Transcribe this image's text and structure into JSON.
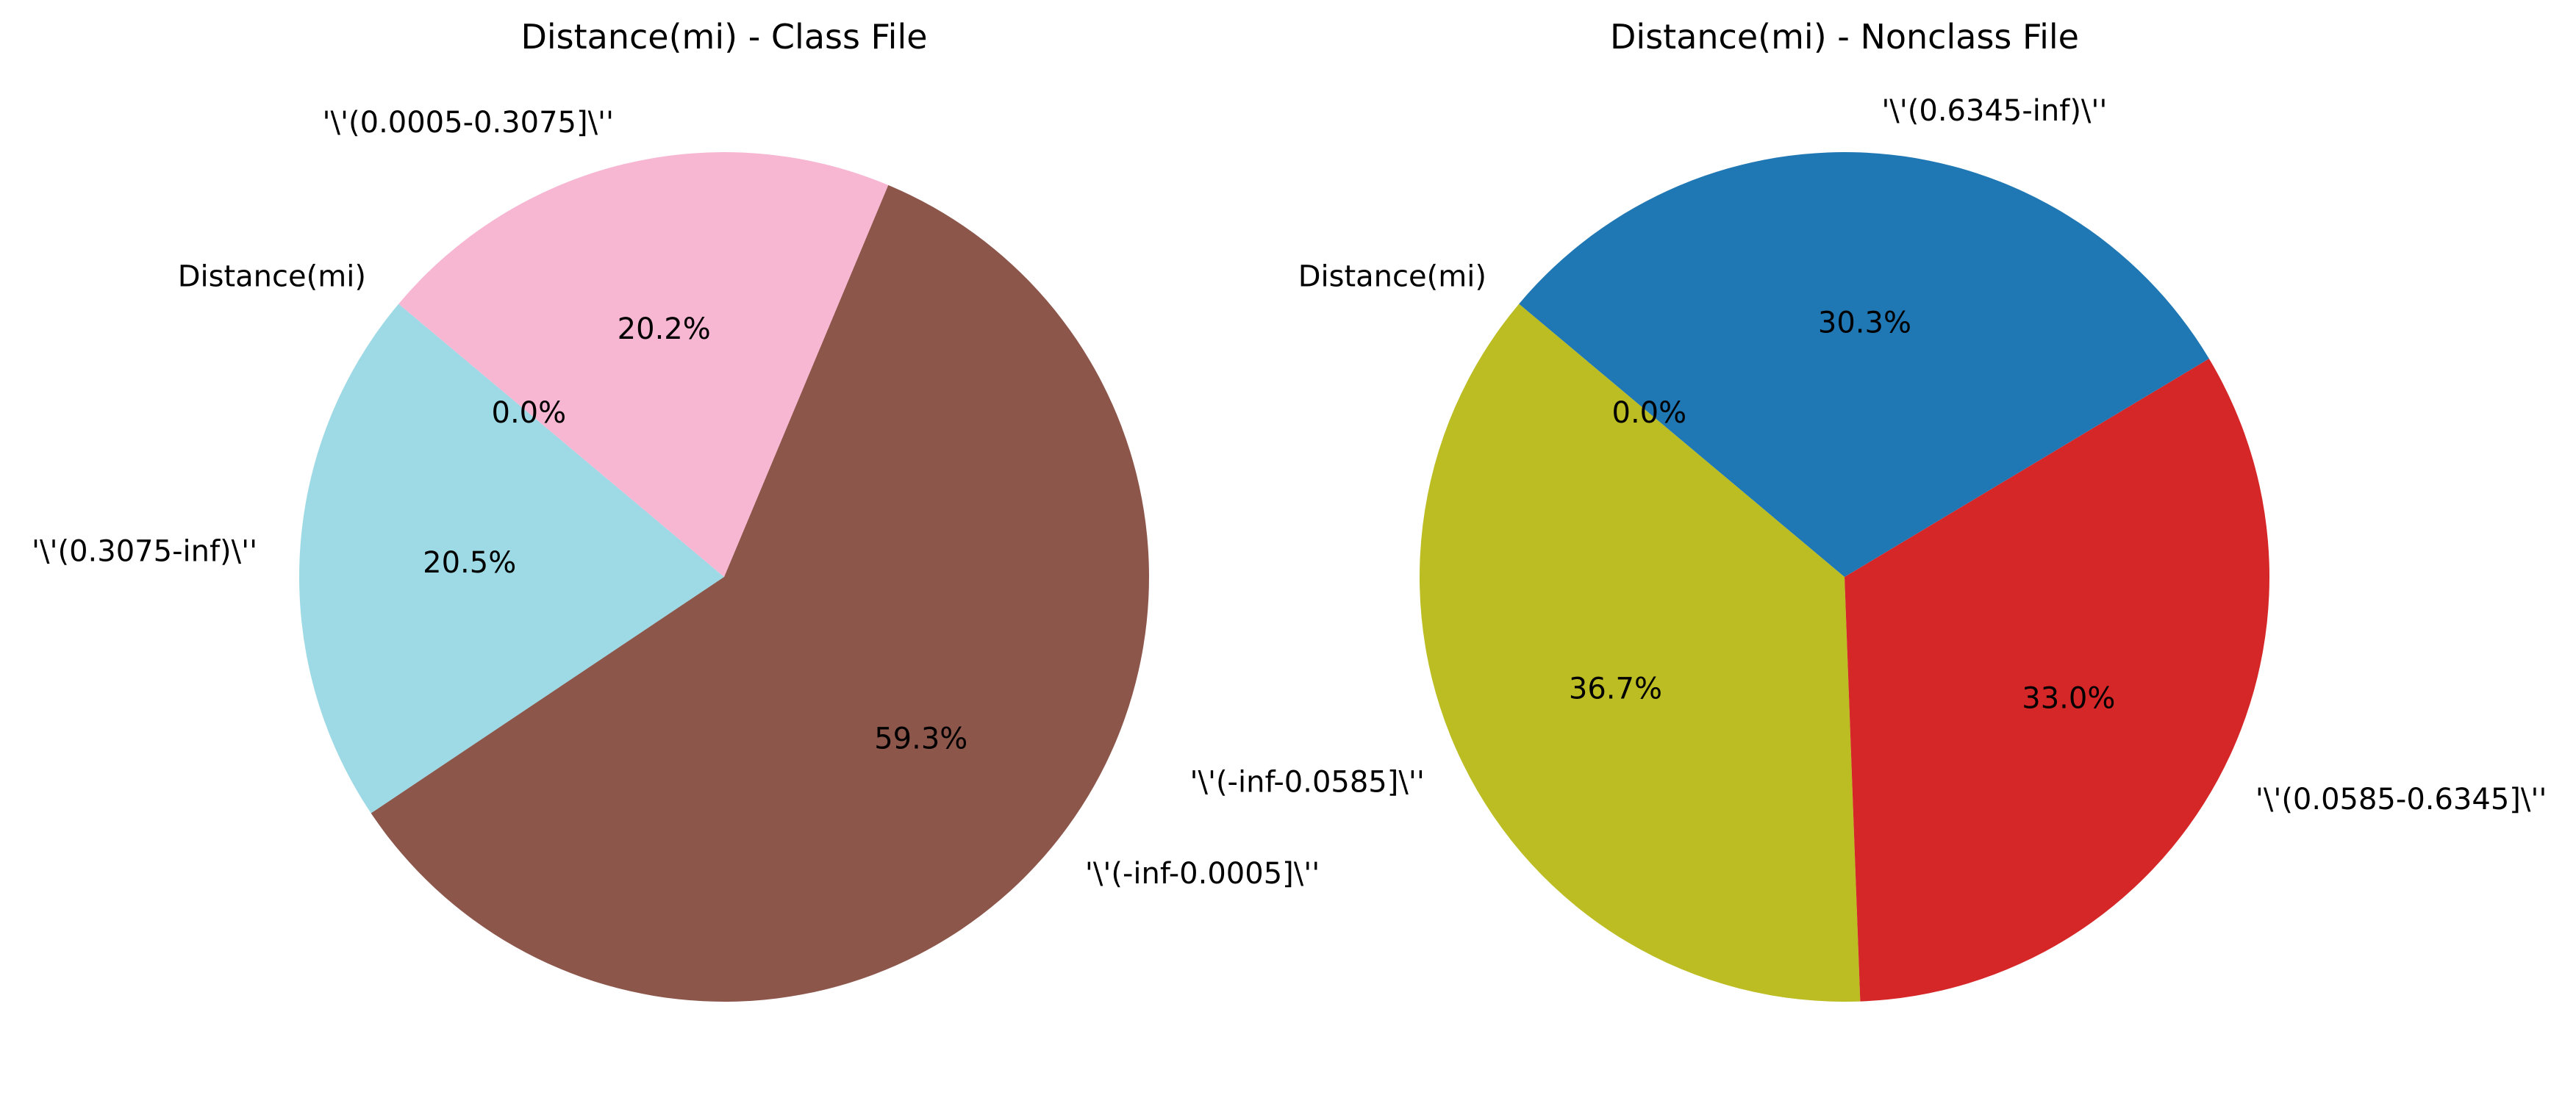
{
  "chart_data": [
    {
      "type": "pie",
      "title": "Distance(mi) - Class File",
      "start_angle_deg": 140,
      "direction": "counterclockwise",
      "slices": [
        {
          "label": "Distance(mi)",
          "value": 0.0,
          "pct_label": "0.0%",
          "color": "#1f77b4"
        },
        {
          "label": "'\\'(0.3075-inf)\\''",
          "value": 20.5,
          "pct_label": "20.5%",
          "color": "#9edae5"
        },
        {
          "label": "'\\'(-inf-0.0005]\\''",
          "value": 59.3,
          "pct_label": "59.3%",
          "color": "#8c564b"
        },
        {
          "label": "'\\'(0.0005-0.3075]\\''",
          "value": 20.2,
          "pct_label": "20.2%",
          "color": "#f7b6d2"
        }
      ]
    },
    {
      "type": "pie",
      "title": "Distance(mi) - Nonclass File",
      "start_angle_deg": 140,
      "direction": "counterclockwise",
      "slices": [
        {
          "label": "Distance(mi)",
          "value": 0.0,
          "pct_label": "0.0%",
          "color": "#1f77b4"
        },
        {
          "label": "'\\'(-inf-0.0585]\\''",
          "value": 36.7,
          "pct_label": "36.7%",
          "color": "#bcbd22"
        },
        {
          "label": "'\\'(0.0585-0.6345]\\''",
          "value": 33.0,
          "pct_label": "33.0%",
          "color": "#d62728"
        },
        {
          "label": "'\\'(0.6345-inf)\\''",
          "value": 30.3,
          "pct_label": "30.3%",
          "color": "#1f77b4"
        }
      ]
    }
  ]
}
